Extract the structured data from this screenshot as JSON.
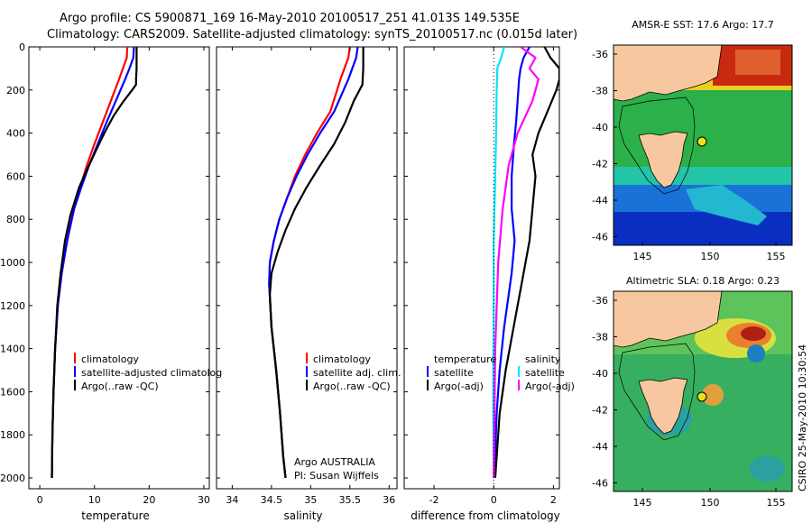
{
  "header": {
    "line1": "Argo profile: CS 5900871_169 16-May-2010 20100517_251 41.013S 149.535E",
    "line2": "Climatology: CARS2009. Satellite-adjusted climatology: synTS_20100517.nc (0.015d later)"
  },
  "colors": {
    "climatology": "#ff0000",
    "satellite": "#0000ff",
    "argo": "#000000",
    "satellite_salinity": "#00e5ff",
    "argo_salinity": "#ff00ff",
    "land": "#f7c8a0"
  },
  "chart_data": [
    {
      "type": "line",
      "name": "temperature-panel",
      "xlabel": "temperature",
      "ylabel": "",
      "xlim": [
        -2,
        31
      ],
      "ylim": [
        2050,
        0
      ],
      "xticks": [
        0,
        10,
        20,
        30
      ],
      "yticks": [
        0,
        200,
        400,
        600,
        800,
        1000,
        1200,
        1400,
        1600,
        1800,
        2000
      ],
      "legend": {
        "position": "lower-right",
        "entries": [
          "climatology",
          "satellite-adjusted climatolog",
          "Argo(..raw -QC)"
        ]
      },
      "series": [
        {
          "name": "climatology",
          "color": "#ff0000",
          "x": [
            16.0,
            15.9,
            15.2,
            14.5,
            13.0,
            11.5,
            10.0,
            8.6,
            7.4,
            6.2,
            5.0,
            4.0,
            3.3,
            2.8,
            2.5,
            2.3,
            2.2
          ],
          "y": [
            0,
            50,
            100,
            150,
            250,
            350,
            450,
            550,
            650,
            750,
            900,
            1050,
            1200,
            1400,
            1600,
            1800,
            2000
          ]
        },
        {
          "name": "satellite-adjusted climatolog",
          "color": "#0000ff",
          "x": [
            17.2,
            17.1,
            16.4,
            15.6,
            13.9,
            12.2,
            10.6,
            9.0,
            7.6,
            6.3,
            5.0,
            4.0,
            3.3,
            2.8,
            2.5,
            2.3,
            2.2
          ],
          "y": [
            0,
            50,
            100,
            150,
            250,
            350,
            450,
            550,
            650,
            750,
            900,
            1050,
            1200,
            1400,
            1600,
            1800,
            2000
          ]
        },
        {
          "name": "Argo(..raw -QC)",
          "color": "#000000",
          "x": [
            17.7,
            17.7,
            17.7,
            17.6,
            17.6,
            16.9,
            15.1,
            13.5,
            11.8,
            10.3,
            8.8,
            7.2,
            5.6,
            4.6,
            3.8,
            3.2,
            2.8,
            2.5,
            2.3,
            2.2
          ],
          "y": [
            0,
            50,
            100,
            150,
            175,
            200,
            260,
            320,
            400,
            480,
            560,
            650,
            780,
            900,
            1050,
            1200,
            1400,
            1600,
            1800,
            2000
          ]
        }
      ]
    },
    {
      "type": "line",
      "name": "salinity-panel",
      "xlabel": "salinity",
      "ylabel": "",
      "xlim": [
        33.8,
        36.1
      ],
      "ylim": [
        2050,
        0
      ],
      "xticks": [
        34,
        34.5,
        35,
        35.5,
        36
      ],
      "legend": {
        "position": "lower-right",
        "entries": [
          "climatology",
          "satellite adj. clim.",
          "Argo(..raw -QC)"
        ]
      },
      "annotations": [
        "Argo AUSTRALIA",
        "PI: Susan Wijffels"
      ],
      "series": [
        {
          "name": "climatology",
          "color": "#ff0000",
          "x": [
            35.5,
            35.48,
            35.38,
            35.25,
            35.08,
            34.93,
            34.8,
            34.7,
            34.6,
            34.53,
            34.48,
            34.47,
            34.5,
            34.56,
            34.61,
            34.65,
            34.68
          ],
          "y": [
            0,
            50,
            150,
            300,
            400,
            500,
            600,
            700,
            800,
            900,
            1000,
            1100,
            1300,
            1500,
            1700,
            1900,
            2000
          ]
        },
        {
          "name": "satellite adj. clim.",
          "color": "#0000ff",
          "x": [
            35.6,
            35.58,
            35.48,
            35.3,
            35.12,
            34.96,
            34.82,
            34.7,
            34.6,
            34.53,
            34.48,
            34.47,
            34.5,
            34.56,
            34.61,
            34.65,
            34.68
          ],
          "y": [
            0,
            50,
            150,
            300,
            400,
            500,
            600,
            700,
            800,
            900,
            1000,
            1100,
            1300,
            1500,
            1700,
            1900,
            2000
          ]
        },
        {
          "name": "Argo(..raw -QC)",
          "color": "#000000",
          "x": [
            35.67,
            35.67,
            35.66,
            35.55,
            35.44,
            35.3,
            35.12,
            34.95,
            34.8,
            34.68,
            34.58,
            34.5,
            34.48,
            34.5,
            34.56,
            34.61,
            34.65,
            34.68
          ],
          "y": [
            0,
            100,
            175,
            250,
            350,
            450,
            550,
            650,
            750,
            850,
            950,
            1050,
            1150,
            1300,
            1500,
            1700,
            1900,
            2000
          ]
        }
      ]
    },
    {
      "type": "line",
      "name": "difference-panel",
      "xlabel": "difference from climatology",
      "ylabel": "",
      "xlim": [
        -3.0,
        2.2
      ],
      "ylim": [
        2050,
        0
      ],
      "xticks": [
        -2,
        0,
        2
      ],
      "legend": {
        "position": "lower-right",
        "entries": [
          "temperature",
          "satellite",
          "Argo(-adj)",
          "salinity",
          "satellite",
          "Argo(-adj)"
        ]
      },
      "series": [
        {
          "name": "temperature satellite",
          "color": "#0000ff",
          "x": [
            1.2,
            1.0,
            0.9,
            0.85,
            0.8,
            0.75,
            0.68,
            0.6,
            0.6,
            0.7,
            0.6,
            0.5,
            0.35,
            0.2,
            0.1,
            0.02
          ],
          "y": [
            0,
            50,
            100,
            150,
            250,
            350,
            450,
            600,
            750,
            900,
            1050,
            1150,
            1300,
            1500,
            1700,
            2000
          ]
        },
        {
          "name": "temperature Argo(-adj)",
          "color": "#000000",
          "x": [
            1.7,
            1.9,
            2.2,
            2.2,
            2.1,
            1.8,
            1.5,
            1.3,
            1.4,
            1.3,
            1.2,
            1.0,
            0.8,
            0.6,
            0.4,
            0.2,
            0.05
          ],
          "y": [
            0,
            50,
            100,
            150,
            200,
            300,
            400,
            500,
            600,
            750,
            900,
            1050,
            1200,
            1350,
            1500,
            1700,
            2000
          ]
        },
        {
          "name": "salinity satellite",
          "color": "#00e5ff",
          "x": [
            0.35,
            0.25,
            0.12,
            0.1,
            0.08,
            0.05,
            0.0,
            0.0,
            -0.02,
            0.0
          ],
          "y": [
            0,
            50,
            100,
            200,
            400,
            600,
            900,
            1200,
            1600,
            2000
          ]
        },
        {
          "name": "salinity Argo(-adj)",
          "color": "#ff00ff",
          "x": [
            0.9,
            1.4,
            1.2,
            1.5,
            1.3,
            0.8,
            0.5,
            0.3,
            0.15,
            0.05,
            0.0
          ],
          "y": [
            0,
            50,
            100,
            150,
            250,
            400,
            550,
            750,
            1000,
            1400,
            2000
          ]
        }
      ]
    }
  ],
  "maps": [
    {
      "title": "AMSR-E SST: 17.6 Argo: 17.7",
      "xticks": [
        "145",
        "150",
        "155"
      ],
      "yticks": [
        "-36",
        "-38",
        "-40",
        "-42",
        "-44",
        "-46"
      ]
    },
    {
      "title": "Altimetric SLA: 0.18 Argo: 0.23",
      "xticks": [
        "145",
        "150",
        "155"
      ],
      "yticks": [
        "-36",
        "-38",
        "-40",
        "-42",
        "-44",
        "-46"
      ]
    }
  ],
  "credit": "CSIRO 25-May-2010 10:30:54"
}
